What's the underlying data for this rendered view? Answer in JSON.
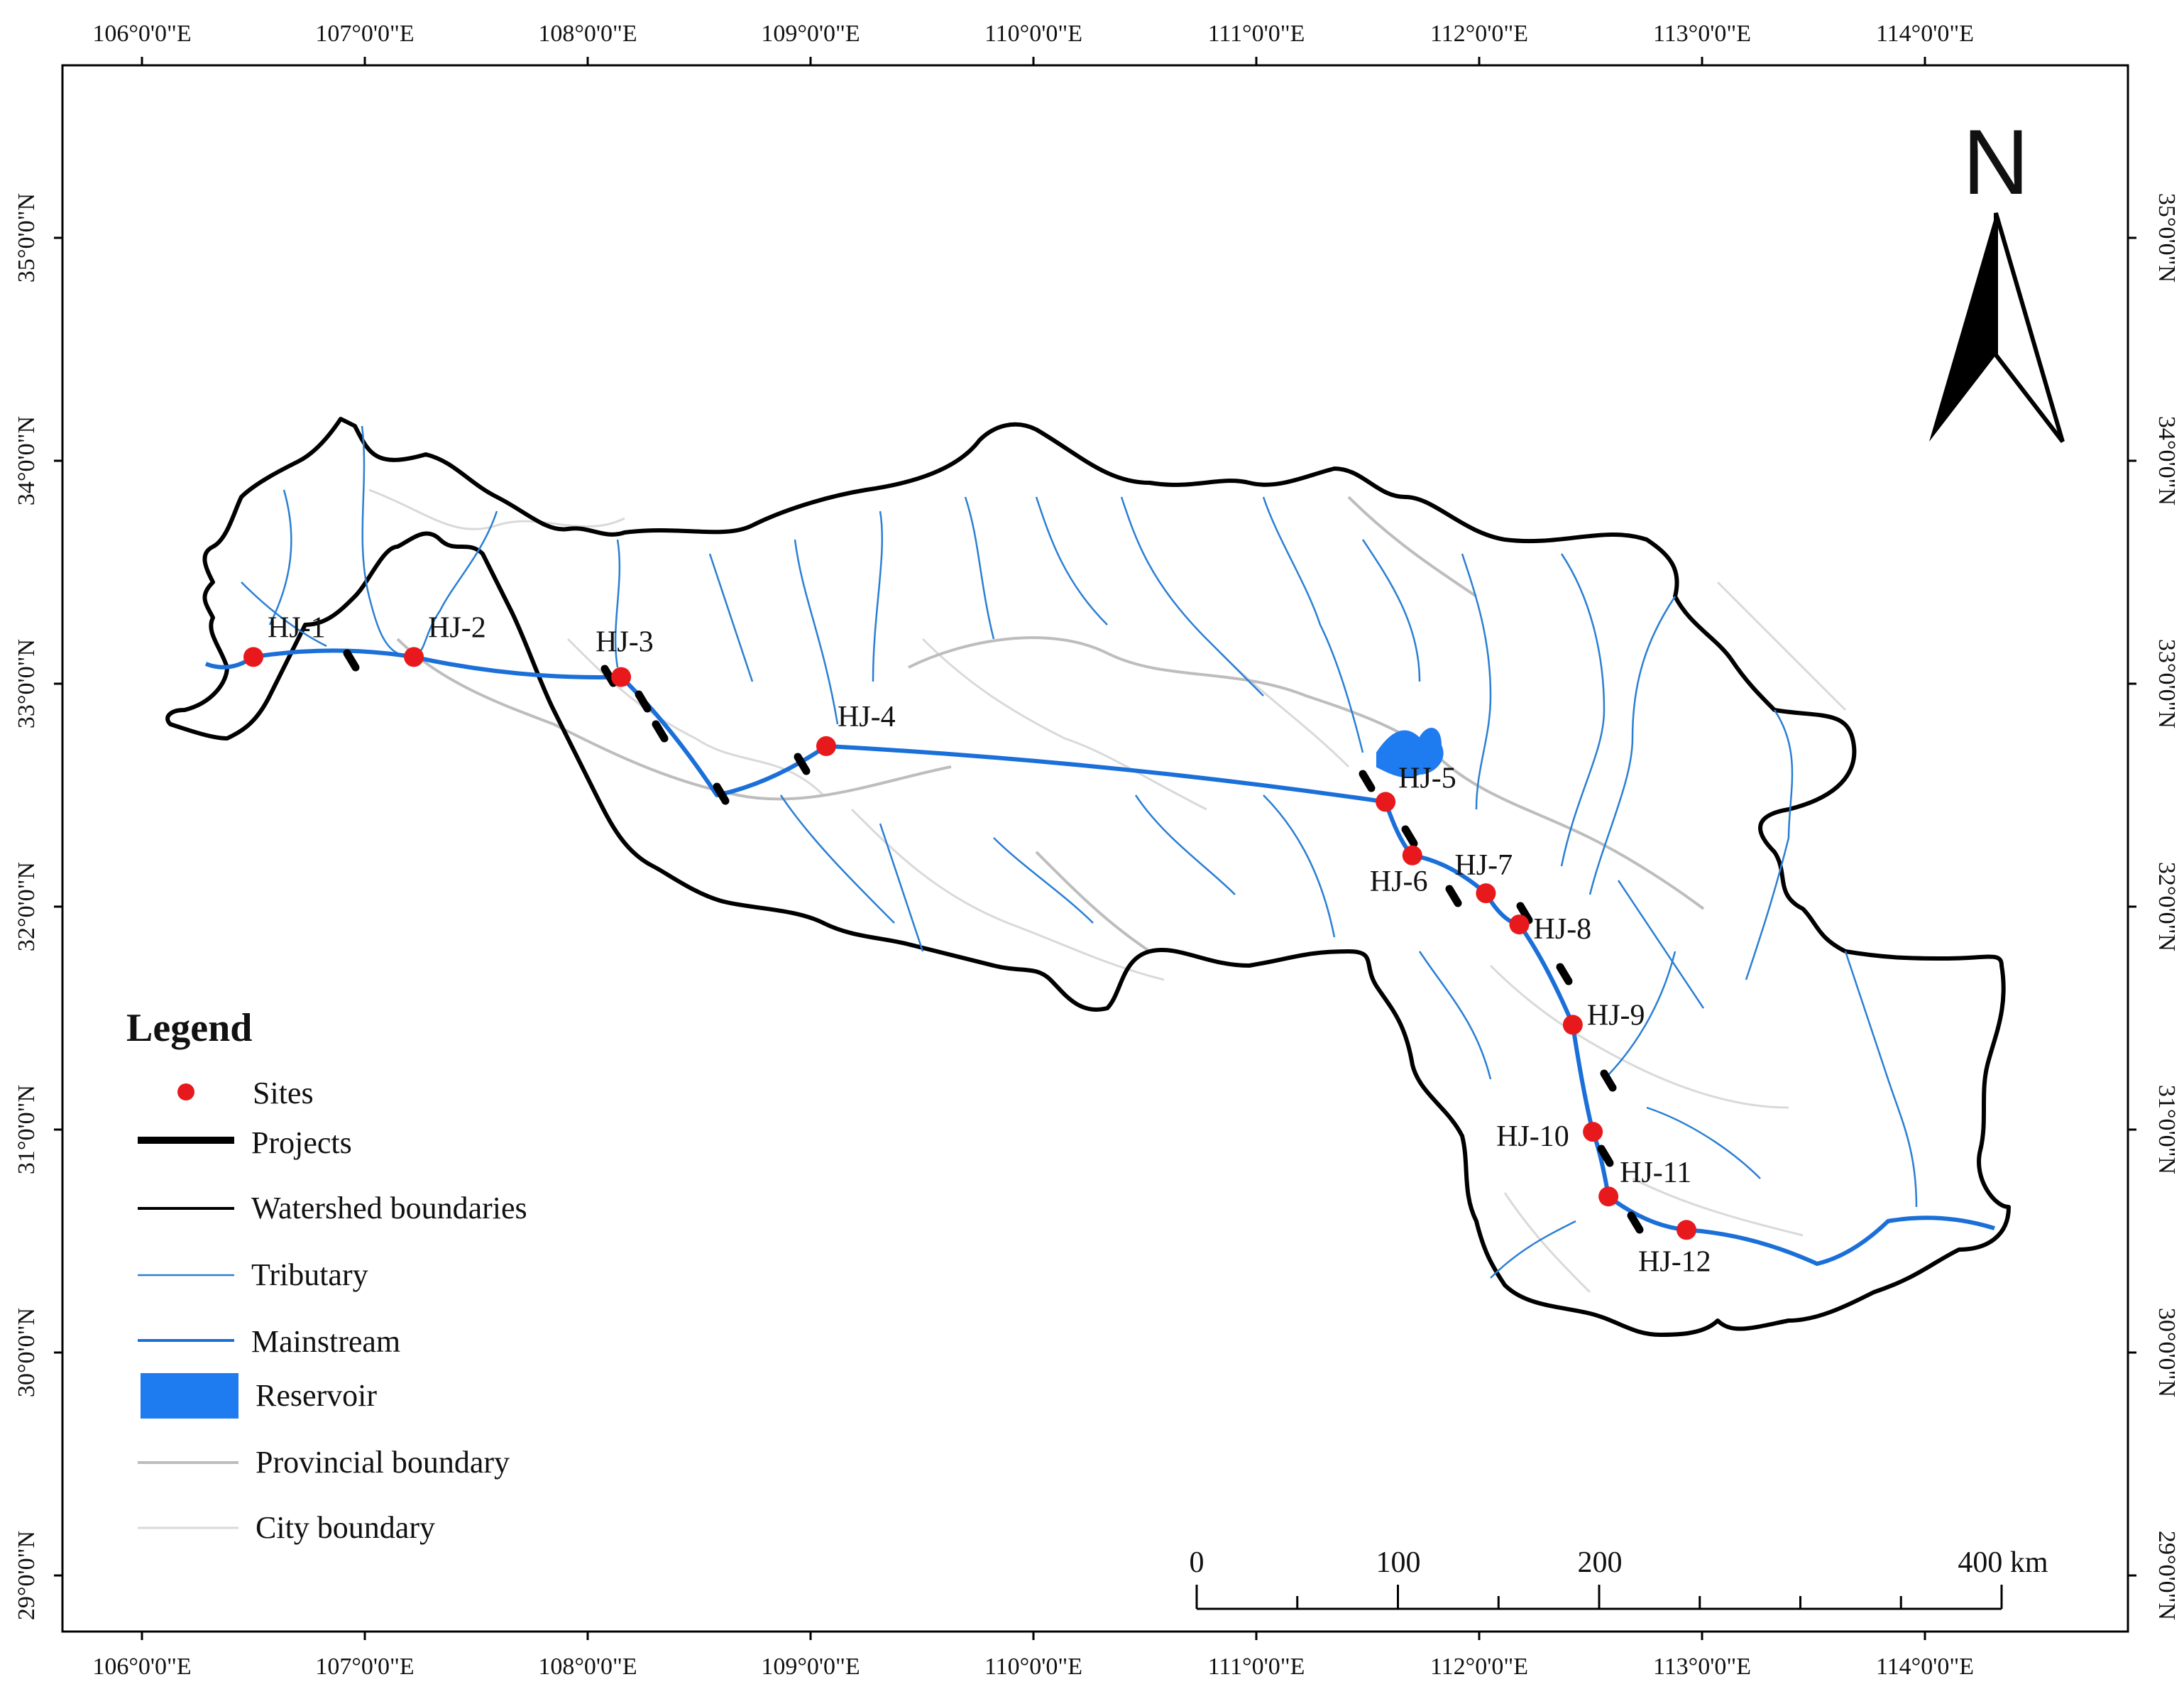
{
  "map": {
    "top_ticks": [
      "106°0'0\"E",
      "107°0'0\"E",
      "108°0'0\"E",
      "109°0'0\"E",
      "110°0'0\"E",
      "111°0'0\"E",
      "112°0'0\"E",
      "113°0'0\"E",
      "114°0'0\"E"
    ],
    "bottom_ticks": [
      "106°0'0\"E",
      "107°0'0\"E",
      "108°0'0\"E",
      "109°0'0\"E",
      "110°0'0\"E",
      "111°0'0\"E",
      "112°0'0\"E",
      "113°0'0\"E",
      "114°0'0\"E"
    ],
    "left_ticks": [
      "35°0'0\"N",
      "34°0'0\"N",
      "33°0'0\"N",
      "32°0'0\"N",
      "31°0'0\"N",
      "30°0'0\"N",
      "29°0'0\"N"
    ],
    "right_ticks": [
      "35°0'0\"N",
      "34°0'0\"N",
      "33°0'0\"N",
      "32°0'0\"N",
      "31°0'0\"N",
      "30°0'0\"N",
      "29°0'0\"N"
    ],
    "north_label": "N",
    "sites": [
      {
        "label": "HJ-1",
        "lon": 106.5,
        "lat": 33.12
      },
      {
        "label": "HJ-2",
        "lon": 107.22,
        "lat": 33.12
      },
      {
        "label": "HJ-3",
        "lon": 108.15,
        "lat": 33.03
      },
      {
        "label": "HJ-4",
        "lon": 109.07,
        "lat": 32.72
      },
      {
        "label": "HJ-5",
        "lon": 111.58,
        "lat": 32.47
      },
      {
        "label": "HJ-6",
        "lon": 111.7,
        "lat": 32.23
      },
      {
        "label": "HJ-7",
        "lon": 112.03,
        "lat": 32.06
      },
      {
        "label": "HJ-8",
        "lon": 112.18,
        "lat": 31.92
      },
      {
        "label": "HJ-9",
        "lon": 112.42,
        "lat": 31.47
      },
      {
        "label": "HJ-10",
        "lon": 112.51,
        "lat": 30.99
      },
      {
        "label": "HJ-11",
        "lon": 112.58,
        "lat": 30.7
      },
      {
        "label": "HJ-12",
        "lon": 112.93,
        "lat": 30.55
      }
    ],
    "colors": {
      "site": "#e8191c",
      "project": "#000000",
      "watershed": "#000000",
      "tributary": "#2a7fd4",
      "mainstream": "#1a6fd8",
      "reservoir": "#1e7bf0",
      "provincial": "#bdbdbd",
      "city": "#d9d9d9"
    }
  },
  "legend": {
    "title": "Legend",
    "items": {
      "sites": "Sites",
      "projects": "Projects",
      "watershed": "Watershed boundaries",
      "tributary": "Tributary",
      "mainstream": "Mainstream",
      "reservoir": "Reservoir",
      "provincial": "Provincial boundary",
      "city": "City boundary"
    }
  },
  "scale_bar": {
    "labels": [
      "0",
      "100",
      "200",
      "400 km"
    ]
  }
}
